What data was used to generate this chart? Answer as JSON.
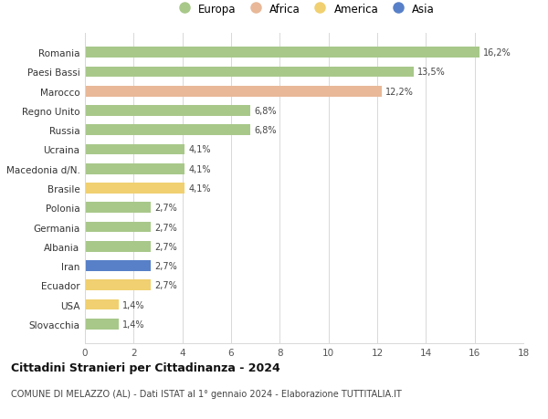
{
  "countries": [
    "Romania",
    "Paesi Bassi",
    "Marocco",
    "Regno Unito",
    "Russia",
    "Ucraina",
    "Macedonia d/N.",
    "Brasile",
    "Polonia",
    "Germania",
    "Albania",
    "Iran",
    "Ecuador",
    "USA",
    "Slovacchia"
  ],
  "values": [
    16.2,
    13.5,
    12.2,
    6.8,
    6.8,
    4.1,
    4.1,
    4.1,
    2.7,
    2.7,
    2.7,
    2.7,
    2.7,
    1.4,
    1.4
  ],
  "labels": [
    "16,2%",
    "13,5%",
    "12,2%",
    "6,8%",
    "6,8%",
    "4,1%",
    "4,1%",
    "4,1%",
    "2,7%",
    "2,7%",
    "2,7%",
    "2,7%",
    "2,7%",
    "1,4%",
    "1,4%"
  ],
  "continents": [
    "Europa",
    "Europa",
    "Africa",
    "Europa",
    "Europa",
    "Europa",
    "Europa",
    "America",
    "Europa",
    "Europa",
    "Europa",
    "Asia",
    "America",
    "America",
    "Europa"
  ],
  "continent_colors": {
    "Europa": "#a8c88a",
    "Africa": "#e8b898",
    "America": "#f0d070",
    "Asia": "#5880c8"
  },
  "legend_order": [
    "Europa",
    "Africa",
    "America",
    "Asia"
  ],
  "legend_colors": [
    "#a8c88a",
    "#e8b898",
    "#f0d070",
    "#5880c8"
  ],
  "title": "Cittadini Stranieri per Cittadinanza - 2024",
  "subtitle": "COMUNE DI MELAZZO (AL) - Dati ISTAT al 1° gennaio 2024 - Elaborazione TUTTITALIA.IT",
  "xlim": [
    0,
    18
  ],
  "xticks": [
    0,
    2,
    4,
    6,
    8,
    10,
    12,
    14,
    16,
    18
  ],
  "background_color": "#ffffff",
  "grid_color": "#d8d8d8"
}
